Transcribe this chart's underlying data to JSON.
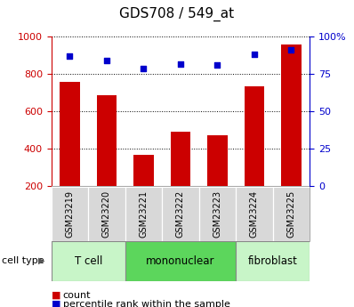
{
  "title": "GDS708 / 549_at",
  "samples": [
    "GSM23219",
    "GSM23220",
    "GSM23221",
    "GSM23222",
    "GSM23223",
    "GSM23224",
    "GSM23225"
  ],
  "counts": [
    758,
    685,
    365,
    488,
    473,
    732,
    958
  ],
  "percentiles": [
    87,
    84,
    79,
    82,
    81,
    88,
    91
  ],
  "ylim_left": [
    200,
    1000
  ],
  "ylim_right": [
    0,
    100
  ],
  "yticks_left": [
    200,
    400,
    600,
    800,
    1000
  ],
  "yticks_right": [
    0,
    25,
    50,
    75,
    100
  ],
  "ytick_labels_right": [
    "0",
    "25",
    "50",
    "75",
    "100%"
  ],
  "groups": [
    {
      "label": "T cell",
      "start": 0,
      "end": 1,
      "color": "#c8f5c8"
    },
    {
      "label": "mononuclear",
      "start": 2,
      "end": 4,
      "color": "#5cd65c"
    },
    {
      "label": "fibroblast",
      "start": 5,
      "end": 6,
      "color": "#c8f5c8"
    }
  ],
  "bar_color": "#cc0000",
  "dot_color": "#0000cc",
  "bar_width": 0.55,
  "grid_color": "#000000",
  "cell_type_label": "cell type",
  "legend_count": "count",
  "legend_percentile": "percentile rank within the sample",
  "sample_box_color": "#d8d8d8",
  "left_axis_color": "#cc0000",
  "right_axis_color": "#0000cc",
  "title_fontsize": 11,
  "tick_fontsize": 8,
  "label_fontsize": 8,
  "group_fontsize": 8.5,
  "legend_fontsize": 8
}
